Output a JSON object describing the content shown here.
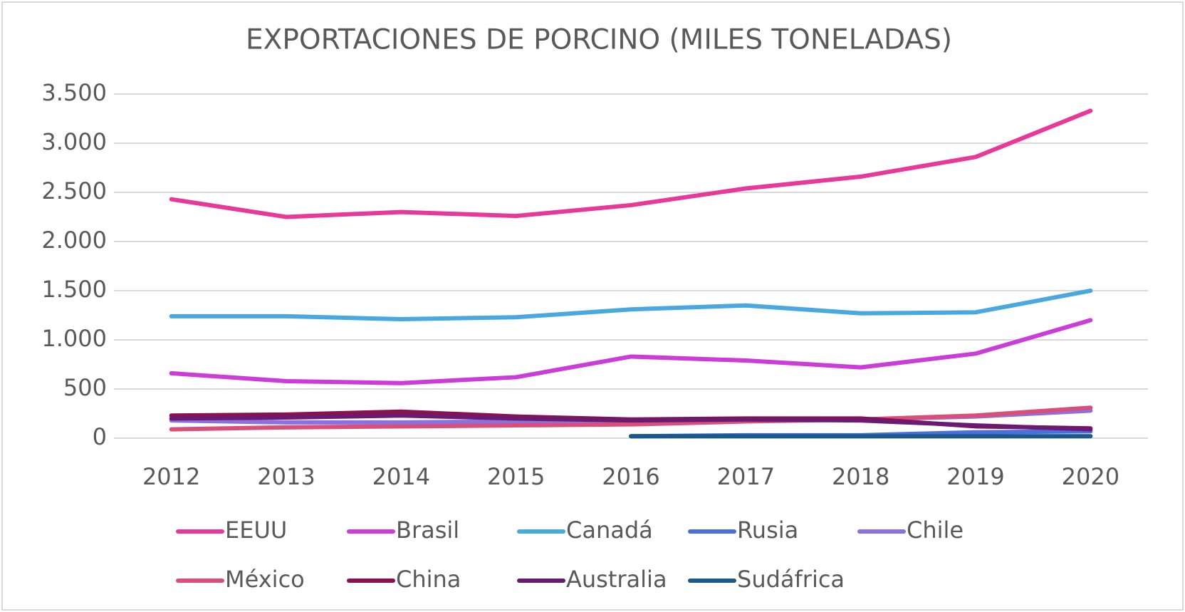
{
  "chart_data": {
    "type": "line",
    "title": "EXPORTACIONES DE PORCINO (MILES TONELADAS)",
    "categories": [
      "2012",
      "2013",
      "2014",
      "2015",
      "2016",
      "2017",
      "2018",
      "2019",
      "2020"
    ],
    "series": [
      {
        "name": "EEUU",
        "color": "#e8389a",
        "values": [
          2430,
          2250,
          2300,
          2260,
          2370,
          2540,
          2660,
          2860,
          3330
        ]
      },
      {
        "name": "Brasil",
        "color": "#cc3cd8",
        "values": [
          660,
          580,
          560,
          620,
          830,
          790,
          720,
          860,
          1200
        ]
      },
      {
        "name": "Canadá",
        "color": "#4aa8e0",
        "values": [
          1240,
          1240,
          1210,
          1230,
          1310,
          1350,
          1270,
          1280,
          1500
        ]
      },
      {
        "name": "Rusia",
        "color": "#4a70e0",
        "values": [
          null,
          null,
          null,
          null,
          20,
          30,
          30,
          60,
          70
        ]
      },
      {
        "name": "Chile",
        "color": "#8a70e0",
        "values": [
          180,
          160,
          160,
          170,
          170,
          180,
          190,
          220,
          280
        ]
      },
      {
        "name": "México",
        "color": "#d8507a",
        "values": [
          90,
          110,
          120,
          130,
          140,
          170,
          190,
          230,
          310
        ]
      },
      {
        "name": "China",
        "color": "#8a1050",
        "values": [
          230,
          240,
          270,
          220,
          190,
          200,
          200,
          120,
          100
        ]
      },
      {
        "name": "Australia",
        "color": "#6a1a70",
        "values": [
          200,
          210,
          230,
          200,
          180,
          190,
          180,
          130,
          90
        ]
      },
      {
        "name": "Sudáfrica",
        "color": "#1a5a8a",
        "values": [
          null,
          null,
          null,
          null,
          20,
          20,
          20,
          20,
          20
        ]
      }
    ],
    "ylim": [
      0,
      3500
    ],
    "yticks": [
      0,
      500,
      {
        "value": 1000,
        "label": "1.000"
      },
      {
        "value": 1500,
        "label": "1.500"
      },
      {
        "value": 2000,
        "label": "2.000"
      },
      {
        "value": 2500,
        "label": "2.500"
      },
      {
        "value": 3000,
        "label": "3.000"
      },
      {
        "value": 3500,
        "label": "3.500"
      }
    ],
    "grid": true,
    "legend": "bottom"
  }
}
